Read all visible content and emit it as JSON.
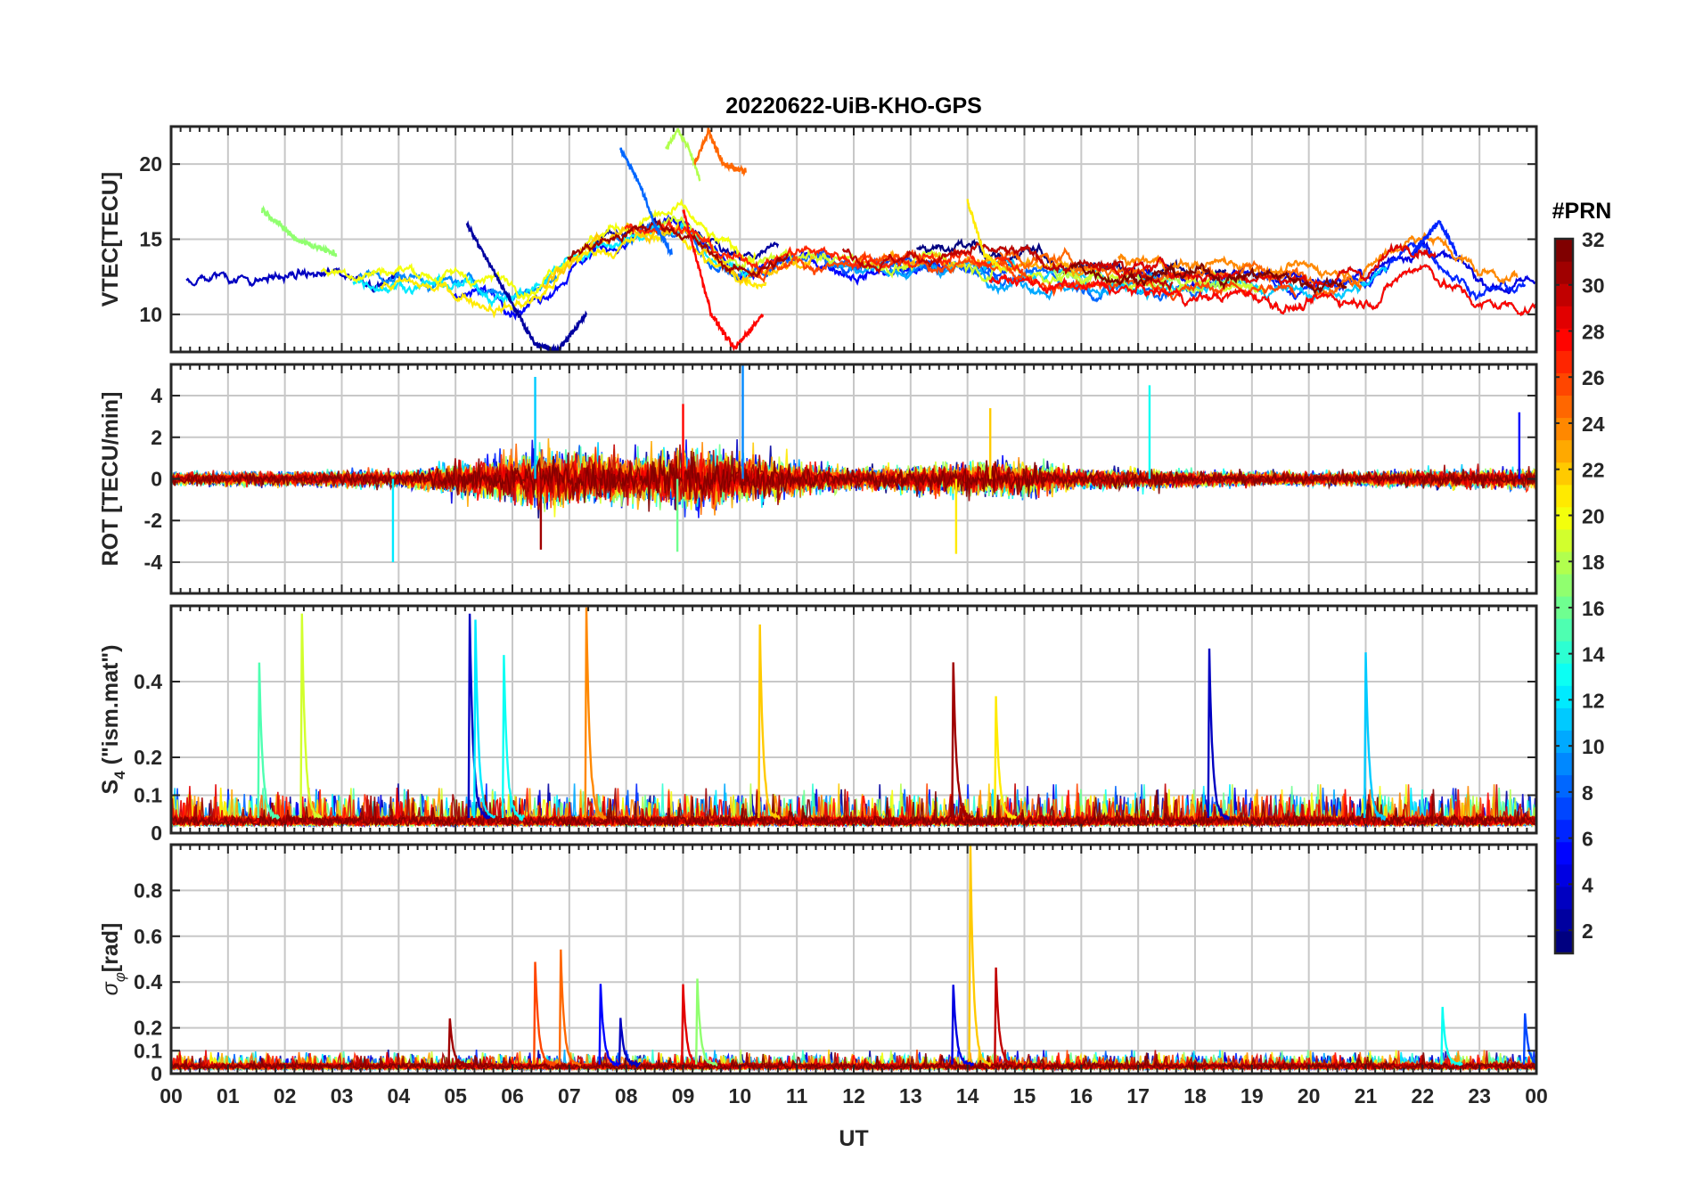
{
  "chart_data": {
    "type": "line",
    "title": "20220622-UiB-KHO-GPS",
    "xlabel": "UT",
    "x_ticks": [
      "00",
      "01",
      "02",
      "03",
      "04",
      "05",
      "06",
      "07",
      "08",
      "09",
      "10",
      "11",
      "12",
      "13",
      "14",
      "15",
      "16",
      "17",
      "18",
      "19",
      "20",
      "21",
      "22",
      "23",
      "00"
    ],
    "x_range_hours": [
      0,
      24
    ],
    "grid": true,
    "colormap": "jet",
    "colorbar": {
      "title": "#PRN",
      "range": [
        1,
        32
      ],
      "ticks": [
        "2",
        "4",
        "6",
        "8",
        "10",
        "12",
        "14",
        "16",
        "18",
        "20",
        "22",
        "24",
        "26",
        "28",
        "30",
        "32"
      ],
      "placement": "right"
    },
    "panels": [
      {
        "id": "vtec",
        "ylabel": "VTEC[TECU]",
        "ylim": [
          7.5,
          22.5
        ],
        "yticks": [
          10,
          15,
          20
        ],
        "ytick_labels": [
          "10",
          "15",
          "20"
        ],
        "baseline": [
          [
            0,
            12.5
          ],
          [
            1,
            12.6
          ],
          [
            2,
            12.5
          ],
          [
            3,
            12.4
          ],
          [
            4,
            12.6
          ],
          [
            5,
            12.0
          ],
          [
            6,
            11.5
          ],
          [
            6.5,
            12
          ],
          [
            7,
            14
          ],
          [
            7.5,
            15
          ],
          [
            8,
            15.5
          ],
          [
            8.5,
            16
          ],
          [
            9,
            16
          ],
          [
            9.5,
            14
          ],
          [
            10,
            13
          ],
          [
            10.5,
            13.5
          ],
          [
            11,
            14
          ],
          [
            12,
            13.5
          ],
          [
            13,
            13.5
          ],
          [
            14,
            13.5
          ],
          [
            15,
            13
          ],
          [
            16,
            12.5
          ],
          [
            17,
            12.3
          ],
          [
            18,
            12
          ],
          [
            19,
            12.2
          ],
          [
            20,
            11.5
          ],
          [
            21,
            12
          ],
          [
            22,
            14.5
          ],
          [
            22.5,
            13
          ],
          [
            23,
            11.5
          ],
          [
            24,
            11.5
          ]
        ],
        "noise": 1.6,
        "features": [
          {
            "prn": 8,
            "points": [
              [
                7.9,
                21
              ],
              [
                8.2,
                19
              ],
              [
                8.5,
                16
              ],
              [
                8.8,
                14
              ]
            ]
          },
          {
            "prn": 18,
            "points": [
              [
                8.7,
                21
              ],
              [
                8.9,
                22.3
              ],
              [
                9.1,
                21
              ],
              [
                9.3,
                19
              ]
            ]
          },
          {
            "prn": 25,
            "points": [
              [
                9.2,
                20
              ],
              [
                9.45,
                22.2
              ],
              [
                9.7,
                20
              ],
              [
                10.1,
                19.5
              ]
            ]
          },
          {
            "prn": 2,
            "points": [
              [
                5.2,
                16
              ],
              [
                6.4,
                8
              ],
              [
                6.8,
                7.6
              ],
              [
                7.3,
                10
              ]
            ]
          },
          {
            "prn": 28,
            "points": [
              [
                9.0,
                17
              ],
              [
                9.5,
                10
              ],
              [
                9.9,
                7.7
              ],
              [
                10.4,
                10
              ]
            ]
          },
          {
            "prn": 17,
            "points": [
              [
                1.6,
                17
              ],
              [
                2.2,
                15
              ],
              [
                2.9,
                14
              ]
            ]
          },
          {
            "prn": 6,
            "points": [
              [
                21.8,
                14
              ],
              [
                22.3,
                16.2
              ],
              [
                22.6,
                14
              ]
            ]
          },
          {
            "prn": 21,
            "points": [
              [
                14.0,
                17.5
              ],
              [
                14.3,
                14
              ],
              [
                14.6,
                13
              ]
            ]
          }
        ]
      },
      {
        "id": "rot",
        "ylabel": "ROT [TECU/min]",
        "ylim": [
          -5.5,
          5.5
        ],
        "yticks": [
          -4,
          -2,
          0,
          2,
          4
        ],
        "ytick_labels": [
          "-4",
          "-2",
          "0",
          "2",
          "4"
        ],
        "envelope": [
          [
            0,
            0.6
          ],
          [
            4,
            0.8
          ],
          [
            5.5,
            1.8
          ],
          [
            6.5,
            3.0
          ],
          [
            8,
            2.2
          ],
          [
            9,
            3.0
          ],
          [
            10.5,
            2.0
          ],
          [
            12,
            1.0
          ],
          [
            13.5,
            1.5
          ],
          [
            14.5,
            1.8
          ],
          [
            16,
            1.0
          ],
          [
            18,
            0.8
          ],
          [
            20,
            0.6
          ],
          [
            22,
            0.8
          ],
          [
            24,
            1.0
          ]
        ],
        "spikes": [
          {
            "prn": 9,
            "hour": 10.05,
            "value": 5.5
          },
          {
            "prn": 11,
            "hour": 6.4,
            "value": 4.9
          },
          {
            "prn": 13,
            "hour": 17.2,
            "value": 4.5
          },
          {
            "prn": 12,
            "hour": 3.9,
            "value": -4.0
          },
          {
            "prn": 28,
            "hour": 9.0,
            "value": 3.6
          },
          {
            "prn": 31,
            "hour": 6.5,
            "value": -3.4
          },
          {
            "prn": 22,
            "hour": 14.4,
            "value": 3.4
          },
          {
            "prn": 16,
            "hour": 8.9,
            "value": -3.5
          },
          {
            "prn": 5,
            "hour": 23.7,
            "value": 3.2
          },
          {
            "prn": 21,
            "hour": 13.8,
            "value": -3.6
          }
        ]
      },
      {
        "id": "s4",
        "ylabel": "S_4 (\"ism.mat\")",
        "ylabel_main": "S",
        "ylabel_sub": "4",
        "ylabel_rest": " (\"ism.mat\")",
        "ylim": [
          0,
          0.6
        ],
        "yticks": [
          0,
          0.1,
          0.2,
          0.4
        ],
        "ytick_labels": [
          "0",
          "0.1",
          "0.2",
          "0.4"
        ],
        "baseline_mean": 0.04,
        "noise": 0.07,
        "spikes": [
          {
            "prn": 15,
            "hour": 1.55,
            "value": 0.45
          },
          {
            "prn": 19,
            "hour": 2.3,
            "value": 0.58
          },
          {
            "prn": 3,
            "hour": 5.25,
            "value": 0.58
          },
          {
            "prn": 12,
            "hour": 5.35,
            "value": 0.56
          },
          {
            "prn": 13,
            "hour": 5.85,
            "value": 0.47
          },
          {
            "prn": 24,
            "hour": 7.3,
            "value": 0.6
          },
          {
            "prn": 22,
            "hour": 10.35,
            "value": 0.55
          },
          {
            "prn": 31,
            "hour": 13.75,
            "value": 0.45
          },
          {
            "prn": 21,
            "hour": 14.5,
            "value": 0.36
          },
          {
            "prn": 3,
            "hour": 18.25,
            "value": 0.49
          },
          {
            "prn": 11,
            "hour": 21.0,
            "value": 0.48
          }
        ]
      },
      {
        "id": "sigma_phi",
        "ylabel": "σ_φ[rad]",
        "ylabel_main": "σ",
        "ylabel_sub": "φ",
        "ylabel_rest": "[rad]",
        "ylim": [
          0,
          1.0
        ],
        "yticks": [
          0,
          0.1,
          0.2,
          0.4,
          0.6,
          0.8
        ],
        "ytick_labels": [
          "0",
          "0.1",
          "0.2",
          "0.4",
          "0.6",
          "0.8"
        ],
        "baseline_mean": 0.04,
        "noise": 0.05,
        "spikes": [
          {
            "prn": 22,
            "hour": 14.05,
            "value": 1.0
          },
          {
            "prn": 30,
            "hour": 14.5,
            "value": 0.46
          },
          {
            "prn": 26,
            "hour": 6.4,
            "value": 0.49
          },
          {
            "prn": 25,
            "hour": 6.85,
            "value": 0.54
          },
          {
            "prn": 5,
            "hour": 7.55,
            "value": 0.39
          },
          {
            "prn": 29,
            "hour": 9.0,
            "value": 0.39
          },
          {
            "prn": 17,
            "hour": 9.25,
            "value": 0.41
          },
          {
            "prn": 4,
            "hour": 13.75,
            "value": 0.39
          },
          {
            "prn": 13,
            "hour": 22.35,
            "value": 0.29
          },
          {
            "prn": 7,
            "hour": 23.8,
            "value": 0.26
          },
          {
            "prn": 31,
            "hour": 4.9,
            "value": 0.24
          },
          {
            "prn": 3,
            "hour": 7.9,
            "value": 0.24
          }
        ]
      }
    ]
  }
}
